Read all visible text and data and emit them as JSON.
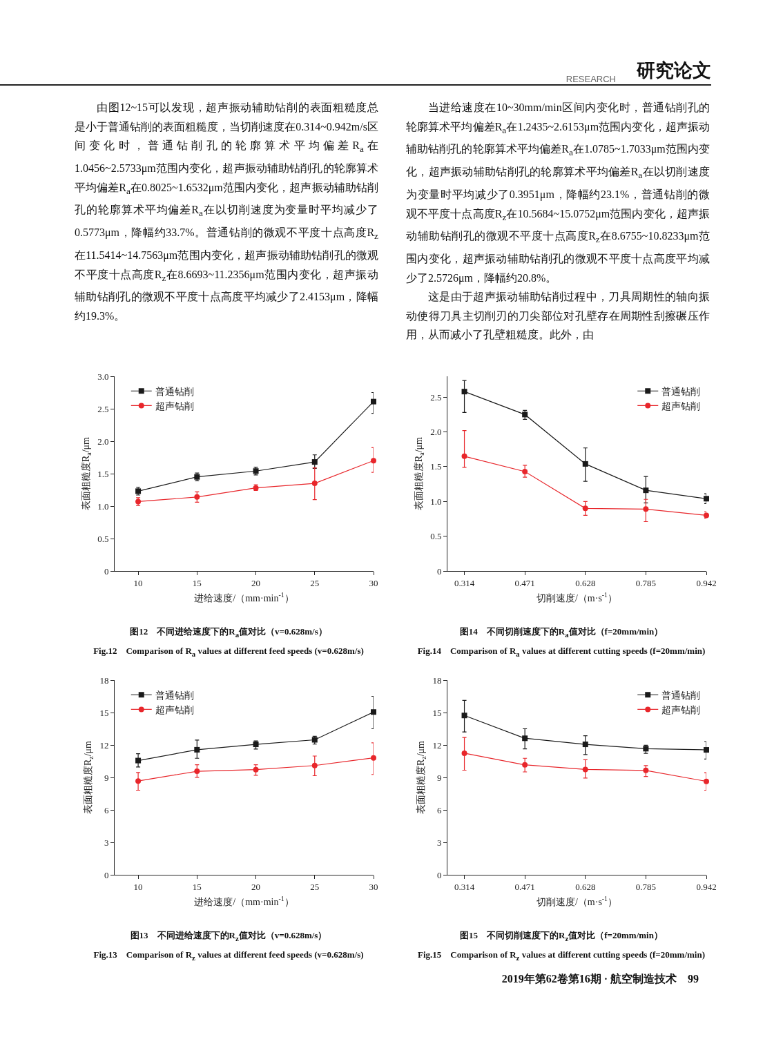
{
  "chart_data": [
    {
      "type": "other",
      "title": "研究论文",
      "subtitle": "RESEARCH",
      "annotations": [
        "由图12~15可以发现，超声振动辅助钻削的表面粗糙度总是小于普通钻削的表面粗糙度，当切削速度在0.314~0.942m/s区间变化时，普通钻削孔的轮廓算术平均偏差R$_{a}$在1.0456~2.5733μm范围内变化，超声振动辅助钻削孔的轮廓算术平均偏差R$_{a}$在0.8025~1.6532μm范围内变化，超声振动辅助钻削孔的轮廓算术平均偏差R$_{a}$在以切削速度为变量时平均减少了0.5773μm，降幅约33.7%。普通钻削的微观不平度十点高度R$_{z}$在11.5414~14.7563μm范围内变化，超声振动辅助钻削孔的微观不平度十点高度R$_{z}$在8.6693~11.2356μm范围内变化，超声振动辅助钻削孔的微观不平度十点高度平均减少了2.4153μm，降幅约19.3%。",
        "当进给速度在10~30mm/min区间内变化时，普通钻削孔的轮廓算术平均偏差R$_{a}$在1.2435~2.6153μm范围内变化，超声振动辅助钻削孔的轮廓算术平均偏差R$_{a}$在1.0785~1.7033μm范围内变化，超声振动辅助钻削孔的轮廓算术平均偏差R$_{a}$在以切削速度为变量时平均减少了0.3951μm，降幅约23.1%，普通钻削的微观不平度十点高度R$_{z}$在10.5684~15.0752μm范围内变化，超声振动辅助钻削孔的微观不平度十点高度R$_{z}$在8.6755~10.8233μm范围内变化，超声振动辅助钻削孔的微观不平度十点高度平均减少了2.5726μm，降幅约20.8%。",
        "这是由于超声振动辅助钻削过程中，刀具周期性的轴向振动使得刀具主切削刃的刀尖部位对孔壁存在周期性刮擦碾压作用，从而减小了孔壁粗糙度。此外，由",
        "2019年第62卷第16期 · 航空制造技术　99"
      ]
    },
    {
      "type": "line",
      "title": "图12　不同进给速度下的R$_{a}$值对比（v=0.628m/s）",
      "subtitle": "Fig.12　Comparison of R$_{a}$ values at different feed speeds (v=0.628m/s)",
      "xlabel": "进给速度/（mm·min$^{-1}$）",
      "ylabel": "表面粗糙度R$_{a}$/μm",
      "x": [
        10,
        15,
        20,
        25,
        30
      ],
      "xlim": [
        8,
        30
      ],
      "xticks": [
        10,
        15,
        20,
        25,
        30
      ],
      "ylim": [
        0,
        3
      ],
      "yticks": [
        0,
        0.5,
        {
          "value": 1,
          "label": "1.0"
        },
        1.5,
        {
          "value": 2,
          "label": "2.0"
        },
        2.5,
        {
          "value": 3,
          "label": "3.0"
        }
      ],
      "legend": "top left",
      "line_style": "solid",
      "series": [
        {
          "name": "普通钻削",
          "color": "#1a1a1a",
          "marker": "square",
          "values": [
            1.23,
            1.45,
            1.54,
            1.68,
            2.61
          ],
          "errors": [
            [
              1.17,
              1.29
            ],
            [
              1.39,
              1.51
            ],
            [
              1.48,
              1.6
            ],
            [
              1.58,
              1.79
            ],
            [
              2.43,
              2.75
            ]
          ]
        },
        {
          "name": "超声钻削",
          "color": "#e8262b",
          "marker": "circle",
          "values": [
            1.07,
            1.14,
            1.28,
            1.35,
            1.7
          ],
          "errors": [
            [
              1.01,
              1.13
            ],
            [
              1.06,
              1.22
            ],
            [
              1.24,
              1.33
            ],
            [
              1.1,
              1.59
            ],
            [
              1.52,
              1.9
            ]
          ]
        }
      ]
    },
    {
      "type": "line",
      "title": "图14　不同切削速度下的R$_{a}$值对比（f=20mm/min）",
      "subtitle": "Fig.14　Comparison of R$_{a}$ values at different cutting speeds (f=20mm/min)",
      "xlabel": "切削速度/（m·s$^{-1}$）",
      "ylabel": "表面粗糙度R$_{a}$/μm",
      "x": [
        0.314,
        0.471,
        0.628,
        0.785,
        0.942
      ],
      "xlim": [
        0.27,
        0.942
      ],
      "xticks": [
        0.314,
        0.471,
        0.628,
        0.785,
        0.942
      ],
      "ylim": [
        0,
        2.8
      ],
      "yticks": [
        0,
        0.5,
        {
          "value": 1,
          "label": "1.0"
        },
        1.5,
        {
          "value": 2,
          "label": "2.0"
        },
        2.5
      ],
      "legend": "top right",
      "line_style": "solid",
      "series": [
        {
          "name": "普通钻削",
          "color": "#1a1a1a",
          "marker": "square",
          "values": [
            2.58,
            2.25,
            1.54,
            1.16,
            1.04
          ],
          "errors": [
            [
              2.28,
              2.74
            ],
            [
              2.18,
              2.31
            ],
            [
              1.29,
              1.77
            ],
            [
              0.98,
              1.36
            ],
            [
              0.97,
              1.11
            ]
          ]
        },
        {
          "name": "超声钻削",
          "color": "#e8262b",
          "marker": "circle",
          "values": [
            1.65,
            1.43,
            0.9,
            0.89,
            0.8
          ],
          "errors": [
            [
              1.49,
              2.02
            ],
            [
              1.35,
              1.52
            ],
            [
              0.8,
              1.0
            ],
            [
              0.71,
              1.03
            ],
            [
              0.76,
              0.85
            ]
          ]
        }
      ]
    },
    {
      "type": "line",
      "title": "图13　不同进给速度下的R$_{z}$值对比（v=0.628m/s）",
      "subtitle": "Fig.13　Comparison of R$_{z}$ values at different feed speeds (v=0.628m/s)",
      "xlabel": "进给速度/（mm·min$^{-1}$）",
      "ylabel": "表面粗糙度R$_{z}$/μm",
      "x": [
        10,
        15,
        20,
        25,
        30
      ],
      "xlim": [
        8,
        30
      ],
      "xticks": [
        10,
        15,
        20,
        25,
        30
      ],
      "ylim": [
        0,
        18
      ],
      "yticks": [
        0,
        3,
        6,
        9,
        12,
        15,
        18
      ],
      "legend": "top left",
      "line_style": "solid",
      "series": [
        {
          "name": "普通钻削",
          "color": "#1a1a1a",
          "marker": "square",
          "values": [
            10.56,
            11.56,
            12.06,
            12.48,
            15.05
          ],
          "errors": [
            [
              9.96,
              11.2
            ],
            [
              10.77,
              12.46
            ],
            [
              11.63,
              12.38
            ],
            [
              12.08,
              12.8
            ],
            [
              13.5,
              16.5
            ]
          ]
        },
        {
          "name": "超声钻削",
          "color": "#e8262b",
          "marker": "circle",
          "values": [
            8.67,
            9.57,
            9.72,
            10.1,
            10.81
          ],
          "errors": [
            [
              7.82,
              9.46
            ],
            [
              9.01,
              10.17
            ],
            [
              9.2,
              10.17
            ],
            [
              9.16,
              10.98
            ],
            [
              9.27,
              12.2
            ]
          ]
        }
      ]
    },
    {
      "type": "line",
      "title": "图15　不同切削速度下的R$_{z}$值对比（f=20mm/min）",
      "subtitle": "Fig.15　Comparison of R$_{z}$ values at different cutting speeds (f=20mm/min)",
      "xlabel": "切削速度/（m·s$^{-1}$）",
      "ylabel": "表面粗糙度R$_{z}$/μm",
      "x": [
        0.314,
        0.471,
        0.628,
        0.785,
        0.942
      ],
      "xlim": [
        0.27,
        0.942
      ],
      "xticks": [
        0.314,
        0.471,
        0.628,
        0.785,
        0.942
      ],
      "ylim": [
        0,
        18
      ],
      "yticks": [
        0,
        3,
        6,
        9,
        12,
        15,
        18
      ],
      "legend": "top right",
      "line_style": "solid",
      "series": [
        {
          "name": "普通钻削",
          "color": "#1a1a1a",
          "marker": "square",
          "values": [
            14.73,
            12.62,
            12.06,
            11.66,
            11.55
          ],
          "errors": [
            [
              13.2,
              16.13
            ],
            [
              11.64,
              13.5
            ],
            [
              11.12,
              12.86
            ],
            [
              11.22,
              11.97
            ],
            [
              10.7,
              12.32
            ]
          ]
        },
        {
          "name": "超声钻削",
          "color": "#e8262b",
          "marker": "circle",
          "values": [
            11.24,
            10.16,
            9.74,
            9.65,
            8.64
          ],
          "errors": [
            [
              9.67,
              12.69
            ],
            [
              9.51,
              10.77
            ],
            [
              8.95,
              10.63
            ],
            [
              9.09,
              10.09
            ],
            [
              7.82,
              9.44
            ]
          ]
        }
      ]
    }
  ]
}
